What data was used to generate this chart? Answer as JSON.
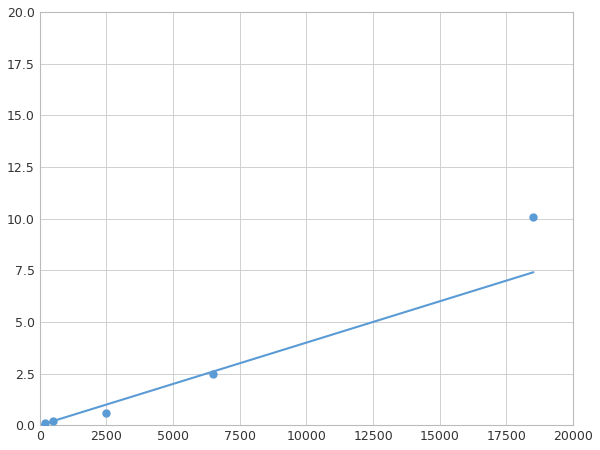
{
  "x": [
    200,
    500,
    2500,
    6500,
    18500
  ],
  "y": [
    0.1,
    0.2,
    0.6,
    2.5,
    10.1
  ],
  "line_color": "#5B9BD5",
  "marker_color": "#5B9BD5",
  "marker_size": 5,
  "xlim": [
    0,
    20000
  ],
  "ylim": [
    0,
    20
  ],
  "xticks": [
    0,
    2500,
    5000,
    7500,
    10000,
    12500,
    15000,
    17500,
    20000
  ],
  "yticks": [
    0.0,
    2.5,
    5.0,
    7.5,
    10.0,
    12.5,
    15.0,
    17.5,
    20.0
  ],
  "grid_color": "#d0d0d0",
  "background_color": "#ffffff",
  "figure_background": "#ffffff"
}
